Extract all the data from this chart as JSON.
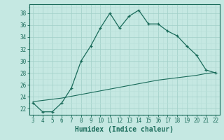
{
  "x_main": [
    3,
    4,
    5,
    6,
    7,
    8,
    9,
    10,
    11,
    12,
    13,
    14,
    15,
    16,
    17,
    18,
    19,
    20,
    21,
    22
  ],
  "y_main": [
    23.0,
    21.5,
    21.5,
    23.0,
    25.5,
    30.0,
    32.5,
    35.5,
    38.0,
    35.5,
    37.5,
    38.5,
    36.2,
    36.2,
    35.0,
    34.2,
    32.5,
    31.0,
    28.5,
    28.0
  ],
  "x_line2": [
    3,
    4,
    5,
    6,
    7,
    8,
    9,
    10,
    11,
    12,
    13,
    14,
    15,
    16,
    17,
    18,
    19,
    20,
    21,
    22
  ],
  "y_line2": [
    23.2,
    23.4,
    23.6,
    23.8,
    24.1,
    24.4,
    24.7,
    25.0,
    25.3,
    25.6,
    25.9,
    26.2,
    26.5,
    26.8,
    27.0,
    27.2,
    27.4,
    27.6,
    27.9,
    28.1
  ],
  "line_color": "#1a6b5a",
  "bg_color": "#c5e8e2",
  "minor_grid_color": "#b8dfd8",
  "major_grid_color": "#a0cfc8",
  "axis_color": "#1a6b5a",
  "xlabel": "Humidex (Indice chaleur)",
  "xlabel_fontsize": 7,
  "ylabel_ticks": [
    22,
    24,
    26,
    28,
    30,
    32,
    34,
    36,
    38
  ],
  "xtick_labels": [
    "3",
    "4",
    "5",
    "6",
    "7",
    "8",
    "9",
    "10",
    "11",
    "12",
    "13",
    "14",
    "15",
    "16",
    "17",
    "18",
    "19",
    "20",
    "21",
    "22"
  ],
  "xlim": [
    2.6,
    22.4
  ],
  "ylim": [
    21.0,
    39.5
  ]
}
